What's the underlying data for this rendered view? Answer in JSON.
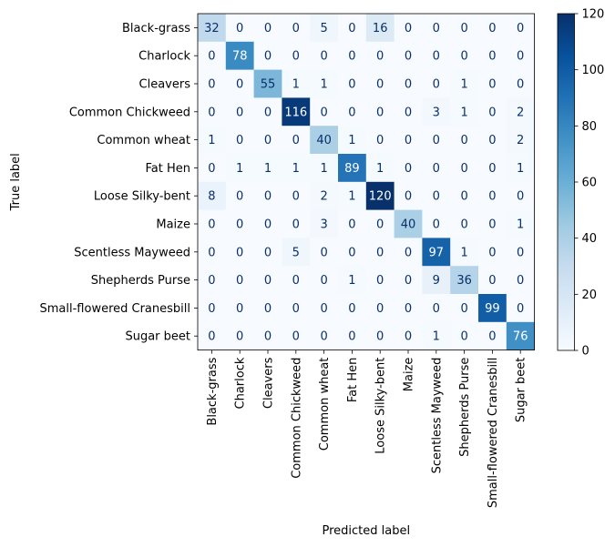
{
  "chart_data": {
    "type": "heatmap",
    "xlabel": "Predicted label",
    "ylabel": "True label",
    "x_categories": [
      "Black-grass",
      "Charlock",
      "Cleavers",
      "Common Chickweed",
      "Common wheat",
      "Fat Hen",
      "Loose Silky-bent",
      "Maize",
      "Scentless Mayweed",
      "Shepherds Purse",
      "Small-flowered Cranesbill",
      "Sugar beet"
    ],
    "y_categories": [
      "Black-grass",
      "Charlock",
      "Cleavers",
      "Common Chickweed",
      "Common wheat",
      "Fat Hen",
      "Loose Silky-bent",
      "Maize",
      "Scentless Mayweed",
      "Shepherds Purse",
      "Small-flowered Cranesbill",
      "Sugar beet"
    ],
    "values": [
      [
        32,
        0,
        0,
        0,
        5,
        0,
        16,
        0,
        0,
        0,
        0,
        0
      ],
      [
        0,
        78,
        0,
        0,
        0,
        0,
        0,
        0,
        0,
        0,
        0,
        0
      ],
      [
        0,
        0,
        55,
        1,
        1,
        0,
        0,
        0,
        0,
        1,
        0,
        0
      ],
      [
        0,
        0,
        0,
        116,
        0,
        0,
        0,
        0,
        3,
        1,
        0,
        2
      ],
      [
        1,
        0,
        0,
        0,
        40,
        1,
        0,
        0,
        0,
        0,
        0,
        2
      ],
      [
        0,
        1,
        1,
        1,
        1,
        89,
        1,
        0,
        0,
        0,
        0,
        1
      ],
      [
        8,
        0,
        0,
        0,
        2,
        1,
        120,
        0,
        0,
        0,
        0,
        0
      ],
      [
        0,
        0,
        0,
        0,
        3,
        0,
        0,
        40,
        0,
        0,
        0,
        1
      ],
      [
        0,
        0,
        0,
        5,
        0,
        0,
        0,
        0,
        97,
        1,
        0,
        0
      ],
      [
        0,
        0,
        0,
        0,
        0,
        1,
        0,
        0,
        9,
        36,
        0,
        0
      ],
      [
        0,
        0,
        0,
        0,
        0,
        0,
        0,
        0,
        0,
        0,
        99,
        0
      ],
      [
        0,
        0,
        0,
        0,
        0,
        0,
        0,
        0,
        1,
        0,
        0,
        76
      ]
    ],
    "colormap": "Blues",
    "colorbar": {
      "range": [
        0,
        120
      ],
      "ticks": [
        0,
        20,
        40,
        60,
        80,
        100,
        120
      ]
    },
    "grid": false
  }
}
